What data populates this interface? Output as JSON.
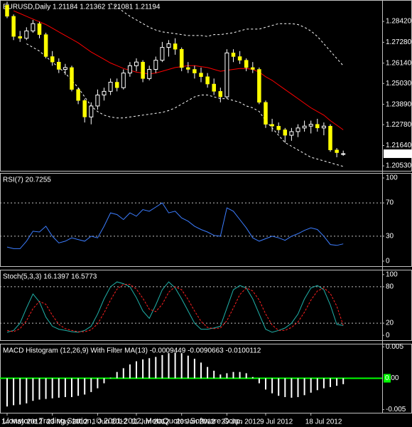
{
  "chart_data": [
    {
      "type": "candlestick",
      "title": "EURUSD,Daily  1.21184 1.21362 1.21081 1.21194",
      "categories": [
        "14 May 2012",
        null,
        null,
        null,
        null,
        null,
        null,
        "23 May 2012",
        null,
        null,
        null,
        null,
        null,
        null,
        "1 Jun 2012",
        null,
        null,
        null,
        null,
        null,
        "11 Jun 2012",
        null,
        null,
        null,
        null,
        null,
        null,
        "20 Jun 2012",
        null,
        null,
        null,
        null,
        null,
        null,
        "29 Jun 2012",
        null,
        null,
        null,
        null,
        null,
        "9 Jul 2012",
        null,
        null,
        null,
        null,
        null,
        null,
        "18 Jul 2012",
        null,
        null,
        null,
        null,
        null
      ],
      "open": [
        1.293,
        1.287,
        1.276,
        1.275,
        1.279,
        1.283,
        1.277,
        1.265,
        1.262,
        1.258,
        1.259,
        1.247,
        1.241,
        1.232,
        1.238,
        1.244,
        1.246,
        1.251,
        1.248,
        1.256,
        1.26,
        1.262,
        1.253,
        1.258,
        1.263,
        1.27,
        1.272,
        1.269,
        1.259,
        1.258,
        1.256,
        1.254,
        1.25,
        1.246,
        1.243,
        1.267,
        1.265,
        1.263,
        1.259,
        1.258,
        1.24,
        1.228,
        1.227,
        1.225,
        1.222,
        1.224,
        1.226,
        1.227,
        1.228,
        1.226,
        1.227,
        1.214,
        1.21184
      ],
      "high": [
        1.295,
        1.288,
        1.279,
        1.281,
        1.285,
        1.284,
        1.278,
        1.268,
        1.264,
        1.261,
        1.26,
        1.248,
        1.242,
        1.24,
        1.247,
        1.248,
        1.253,
        1.253,
        1.258,
        1.262,
        1.264,
        1.263,
        1.26,
        1.265,
        1.273,
        1.274,
        1.275,
        1.27,
        1.262,
        1.26,
        1.259,
        1.256,
        1.253,
        1.248,
        1.269,
        1.269,
        1.268,
        1.264,
        1.262,
        1.259,
        1.241,
        1.231,
        1.229,
        1.226,
        1.226,
        1.228,
        1.23,
        1.23,
        1.231,
        1.229,
        1.228,
        1.215,
        1.21362
      ],
      "low": [
        1.286,
        1.274,
        1.273,
        1.274,
        1.278,
        1.275,
        1.264,
        1.26,
        1.256,
        1.255,
        1.246,
        1.239,
        1.229,
        1.228,
        1.236,
        1.241,
        1.244,
        1.246,
        1.247,
        1.254,
        1.257,
        1.251,
        1.252,
        1.256,
        1.262,
        1.265,
        1.266,
        1.257,
        1.256,
        1.253,
        1.251,
        1.248,
        1.244,
        1.24,
        1.242,
        1.262,
        1.261,
        1.257,
        1.256,
        1.239,
        1.226,
        1.224,
        1.223,
        1.218,
        1.219,
        1.221,
        1.224,
        1.223,
        1.224,
        1.222,
        1.213,
        1.21,
        1.21081
      ],
      "close": [
        1.287,
        1.276,
        1.275,
        1.279,
        1.283,
        1.277,
        1.265,
        1.262,
        1.258,
        1.259,
        1.247,
        1.241,
        1.232,
        1.238,
        1.244,
        1.246,
        1.251,
        1.248,
        1.256,
        1.26,
        1.262,
        1.253,
        1.258,
        1.263,
        1.27,
        1.272,
        1.269,
        1.259,
        1.258,
        1.256,
        1.254,
        1.25,
        1.246,
        1.243,
        1.267,
        1.265,
        1.263,
        1.259,
        1.258,
        1.24,
        1.228,
        1.227,
        1.225,
        1.222,
        1.224,
        1.226,
        1.227,
        1.228,
        1.226,
        1.227,
        1.214,
        1.2125,
        1.21194
      ],
      "up_color": "#000000",
      "down_color": "#ffff00",
      "wick_color": "#ffffff",
      "overlays": [
        {
          "color": "#ff0000",
          "dash": false,
          "values": [
            null,
            1.29,
            1.2885,
            1.287,
            1.2855,
            1.284,
            1.2825,
            1.2805,
            1.2785,
            1.2765,
            1.2745,
            1.2725,
            1.27,
            1.2675,
            1.2655,
            1.2635,
            1.2615,
            1.26,
            1.2585,
            1.2575,
            1.2565,
            1.256,
            1.2555,
            1.256,
            1.257,
            1.258,
            1.259,
            1.2595,
            1.26,
            1.26,
            1.2595,
            1.259,
            1.258,
            1.257,
            1.2575,
            1.258,
            1.2585,
            1.2585,
            1.258,
            1.2565,
            1.254,
            1.252,
            1.2495,
            1.247,
            1.2445,
            1.242,
            1.2395,
            1.237,
            1.235,
            1.233,
            1.23,
            1.2275,
            1.225
          ]
        },
        {
          "color": "#ffffff",
          "dash": true,
          "values": [
            null,
            null,
            null,
            null,
            null,
            null,
            null,
            null,
            null,
            null,
            null,
            null,
            null,
            null,
            null,
            null,
            1.294,
            1.292,
            1.2895,
            1.287,
            1.285,
            1.283,
            1.281,
            1.2795,
            1.2785,
            1.278,
            1.2775,
            1.277,
            1.2765,
            1.2765,
            1.2765,
            1.276,
            1.277,
            1.277,
            1.2775,
            1.278,
            1.279,
            1.28,
            1.28,
            1.28,
            1.281,
            1.282,
            1.283,
            1.283,
            1.283,
            1.2825,
            1.281,
            1.279,
            1.276,
            1.272,
            1.268,
            1.264,
            1.26
          ]
        },
        {
          "color": "#ffffff",
          "dash": true,
          "values": [
            null,
            null,
            null,
            1.272,
            1.27,
            1.268,
            1.265,
            1.262,
            1.259,
            1.256,
            1.252,
            1.248,
            1.243,
            1.238,
            1.235,
            1.233,
            1.232,
            1.2315,
            1.2315,
            1.232,
            1.2325,
            1.233,
            1.2335,
            1.234,
            1.2345,
            1.2355,
            1.237,
            1.239,
            1.241,
            1.243,
            1.244,
            1.244,
            1.243,
            1.242,
            1.242,
            1.241,
            1.24,
            1.238,
            1.237,
            1.235,
            1.23,
            1.226,
            1.222,
            1.218,
            1.216,
            1.214,
            1.212,
            1.21,
            1.209,
            1.208,
            1.207,
            1.206,
            1.205
          ]
        }
      ],
      "ylim": [
        1.2026,
        1.2959
      ],
      "yticks": [
        {
          "value": 1.2842,
          "label": "1.28420"
        },
        {
          "value": 1.2728,
          "label": "1.27280"
        },
        {
          "value": 1.2614,
          "label": "1.26140"
        },
        {
          "value": 1.2503,
          "label": "1.25030"
        },
        {
          "value": 1.2389,
          "label": "1.23890"
        },
        {
          "value": 1.2278,
          "label": "1.22780"
        },
        {
          "value": 1.2164,
          "label": "1.21640"
        },
        {
          "value": 1.2053,
          "label": "1.20530"
        }
      ],
      "last_price": 1.21194
    },
    {
      "type": "line",
      "title": "RSI(7) 20.7255",
      "series": [
        {
          "color": "#3c7dff",
          "dash": false,
          "values": [
            17,
            15,
            15,
            24,
            36,
            35,
            42,
            30,
            22,
            24,
            28,
            26,
            24,
            30,
            28,
            42,
            58,
            56,
            50,
            58,
            54,
            62,
            60,
            65,
            70,
            58,
            60,
            52,
            48,
            42,
            38,
            35,
            31,
            30,
            64,
            60,
            50,
            40,
            28,
            24,
            27,
            30,
            28,
            25,
            30,
            33,
            37,
            40,
            38,
            30,
            20,
            19,
            20.7255
          ]
        }
      ],
      "ylim": [
        -6,
        106
      ],
      "yticks": [
        100,
        70,
        30,
        0
      ],
      "levels": [
        70,
        30
      ]
    },
    {
      "type": "line",
      "title": "Stoch(5,3,3) 16.1397 16.5773",
      "series": [
        {
          "color": "#20b2aa",
          "dash": false,
          "values": [
            5,
            8,
            20,
            45,
            68,
            55,
            30,
            15,
            10,
            8,
            6,
            5,
            8,
            15,
            35,
            60,
            80,
            88,
            85,
            80,
            62,
            40,
            28,
            50,
            75,
            88,
            78,
            60,
            40,
            20,
            10,
            10,
            12,
            15,
            45,
            75,
            82,
            78,
            60,
            35,
            10,
            5,
            8,
            12,
            20,
            35,
            60,
            78,
            82,
            75,
            50,
            18,
            16.1397
          ]
        },
        {
          "color": "#ff2020",
          "dash": true,
          "values": [
            8,
            6,
            11,
            24,
            44,
            56,
            51,
            33,
            18,
            11,
            8,
            6,
            6,
            9,
            19,
            37,
            58,
            76,
            84,
            84,
            76,
            61,
            43,
            39,
            51,
            71,
            80,
            75,
            59,
            40,
            23,
            13,
            11,
            12,
            24,
            45,
            67,
            78,
            73,
            58,
            35,
            17,
            8,
            8,
            13,
            22,
            38,
            58,
            73,
            78,
            69,
            48,
            16.5773
          ]
        }
      ],
      "ylim": [
        -8,
        108
      ],
      "yticks": [
        100,
        80,
        20,
        0
      ],
      "levels": [
        80,
        20
      ]
    },
    {
      "type": "bar",
      "title": "MACD Histogram (12,26,9) With Filter MA(13) -0.0009449 -0.0090663 -0.0100112",
      "values": [
        -0.0045,
        -0.0043,
        -0.0042,
        -0.004,
        -0.0036,
        -0.0034,
        -0.0033,
        -0.0032,
        -0.0031,
        -0.003,
        -0.003,
        -0.0028,
        -0.0026,
        -0.0022,
        -0.0016,
        -0.0008,
        0.0001,
        0.001,
        0.0016,
        0.0022,
        0.0027,
        0.003,
        0.0032,
        0.0034,
        0.0037,
        0.004,
        0.0041,
        0.004,
        0.0036,
        0.0031,
        0.0025,
        0.0018,
        0.0012,
        0.0006,
        0.0008,
        0.001,
        0.001,
        0.0008,
        0.0002,
        -0.0008,
        -0.0018,
        -0.0024,
        -0.0028,
        -0.003,
        -0.0031,
        -0.003,
        -0.0027,
        -0.0023,
        -0.0019,
        -0.0016,
        -0.0014,
        -0.0012,
        -0.0009449
      ],
      "color": "#ffffff",
      "ylim": [
        -0.0055,
        0.0055
      ],
      "yticks": [
        0.005,
        {
          "value": 0,
          "label": "0.00"
        },
        -0.005
      ],
      "zero_line_color": "#00ff00"
    }
  ],
  "footer": "Lionstone Trading Station, © 2001-2012, MetaQuotes Software Corp."
}
